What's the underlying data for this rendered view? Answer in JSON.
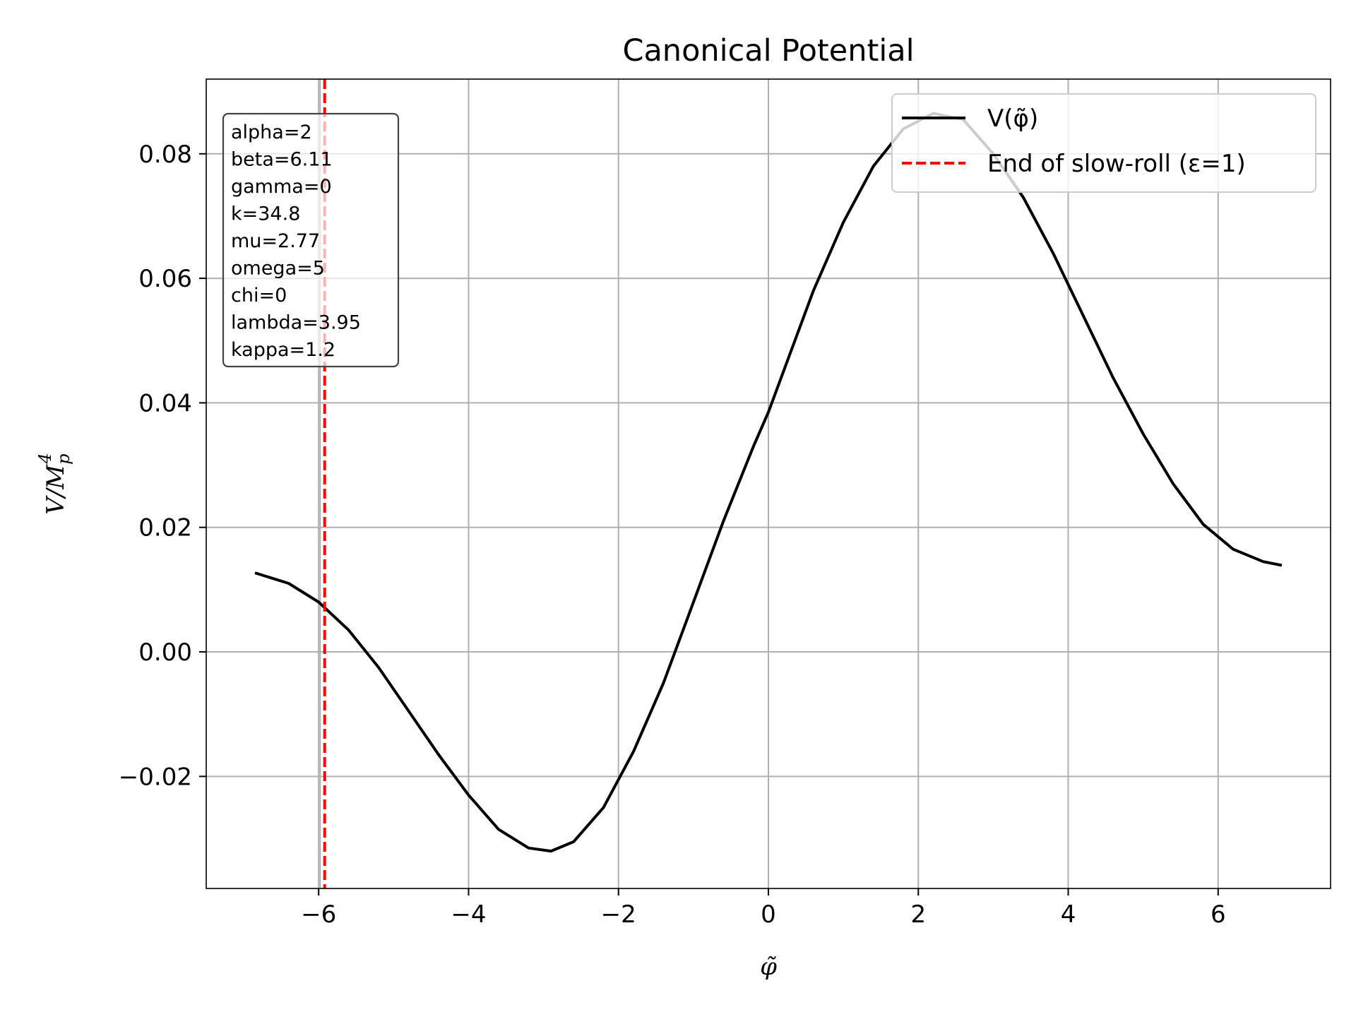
{
  "chart_data": {
    "type": "line",
    "title": "Canonical Potential",
    "xlabel": "φ̃",
    "ylabel": "V/M_p^4",
    "ylabel_main": "V/M",
    "ylabel_sub": "p",
    "ylabel_sup": "4",
    "xlim": [
      -7.5,
      7.5
    ],
    "ylim": [
      -0.038,
      0.092
    ],
    "grid": true,
    "legend_position": "top-right",
    "x_ticks": [
      -6,
      -4,
      -2,
      0,
      2,
      4,
      6
    ],
    "x_tick_labels": [
      "−6",
      "−4",
      "−2",
      "0",
      "2",
      "4",
      "6"
    ],
    "y_ticks": [
      -0.02,
      0.0,
      0.02,
      0.04,
      0.06,
      0.08
    ],
    "y_tick_labels": [
      "−0.02",
      "0.00",
      "0.02",
      "0.04",
      "0.06",
      "0.08"
    ],
    "series": [
      {
        "name": "V(φ̃)",
        "color": "#000000",
        "style": "solid",
        "x": [
          -6.85,
          -6.4,
          -6.0,
          -5.6,
          -5.2,
          -4.8,
          -4.4,
          -4.0,
          -3.6,
          -3.2,
          -2.9,
          -2.6,
          -2.2,
          -1.8,
          -1.4,
          -1.0,
          -0.6,
          -0.2,
          0.0,
          0.2,
          0.6,
          1.0,
          1.4,
          1.8,
          2.2,
          2.6,
          3.0,
          3.4,
          3.8,
          4.2,
          4.6,
          5.0,
          5.4,
          5.8,
          6.2,
          6.6,
          6.85
        ],
        "y": [
          0.0127,
          0.011,
          0.008,
          0.0035,
          -0.0025,
          -0.0095,
          -0.0165,
          -0.023,
          -0.0285,
          -0.0315,
          -0.032,
          -0.0305,
          -0.025,
          -0.016,
          -0.005,
          0.008,
          0.021,
          0.033,
          0.0385,
          0.045,
          0.058,
          0.069,
          0.078,
          0.084,
          0.0865,
          0.0855,
          0.08,
          0.073,
          0.064,
          0.054,
          0.044,
          0.035,
          0.027,
          0.0205,
          0.0165,
          0.0145,
          0.0139
        ]
      }
    ],
    "vline": {
      "name": "End of slow-roll (ε=1)",
      "x": -5.92,
      "color": "#ff0000",
      "style": "dashed"
    },
    "grey_vline_x": -5.98,
    "params": [
      "alpha=2",
      "beta=6.11",
      "gamma=0",
      "k=34.8",
      "mu=2.77",
      "omega=5",
      "chi=0",
      "lambda=3.95",
      "kappa=1.2"
    ]
  }
}
